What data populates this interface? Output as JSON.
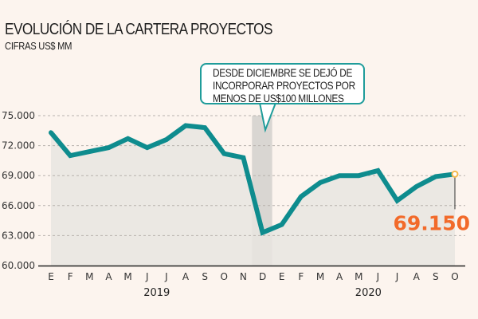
{
  "header": {
    "title": "EVOLUCIÓN DE LA CARTERA PROYECTOS",
    "subtitle": "CIFRAS US$ MM"
  },
  "callout": {
    "lines": [
      "DESDE DICIEMBRE SE DEJÓ DE",
      "INCORPORAR PROYECTOS POR",
      "MENOS DE US$100 MILLONES"
    ]
  },
  "colors": {
    "background": "#fcf4ee",
    "line": "#0e8c8e",
    "area": "#e8e5e1",
    "highlight_band": "#d9d6d2",
    "accent": "#f26a2a",
    "marker": "#f5b84a",
    "grid": "#b8b2ad",
    "callout_border": "#1f9c9a"
  },
  "chart_data": {
    "type": "area",
    "title": "EVOLUCIÓN DE LA CARTERA PROYECTOS",
    "subtitle": "CIFRAS US$ MM",
    "xlabel": "",
    "ylabel": "",
    "ylim": [
      60000,
      75000
    ],
    "yticks": [
      60000,
      63000,
      66000,
      69000,
      72000,
      75000
    ],
    "ytick_labels": [
      "60.000",
      "63.000",
      "66.000",
      "69.000",
      "72.000",
      "75.000"
    ],
    "grid": true,
    "categories": [
      "E",
      "F",
      "M",
      "A",
      "M",
      "J",
      "J",
      "A",
      "S",
      "O",
      "N",
      "D",
      "E",
      "F",
      "M",
      "A",
      "M",
      "J",
      "J",
      "A",
      "S",
      "O"
    ],
    "year_groups": [
      {
        "label": "2019",
        "start_index": 0,
        "end_index": 11
      },
      {
        "label": "2020",
        "start_index": 12,
        "end_index": 21
      }
    ],
    "series": [
      {
        "name": "Cartera de proyectos",
        "values": [
          73300,
          71000,
          71400,
          71800,
          72700,
          71800,
          72600,
          74000,
          73800,
          71200,
          70800,
          63300,
          64100,
          66900,
          68300,
          69000,
          69000,
          69500,
          66500,
          67900,
          68900,
          69150
        ]
      }
    ],
    "highlight_band": {
      "start_index": 11,
      "end_index": 12,
      "note": "DESDE DICIEMBRE SE DEJÓ DE INCORPORAR PROYECTOS POR MENOS DE US$100 MILLONES"
    },
    "annotations": [
      {
        "index": 21,
        "label": "69.150"
      }
    ]
  }
}
